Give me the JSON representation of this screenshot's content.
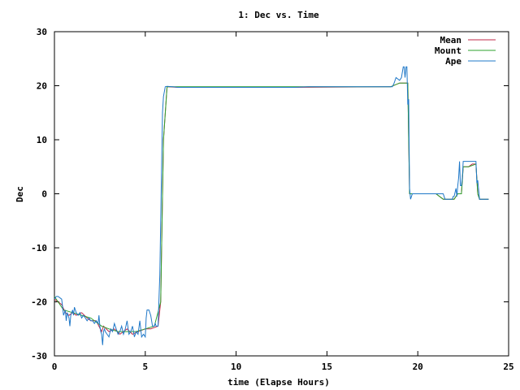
{
  "chart_data": {
    "type": "line",
    "title": "1: Dec vs. Time",
    "xlabel": "time (Elapse Hours)",
    "ylabel": "Dec",
    "xlim": [
      0,
      25
    ],
    "ylim": [
      -30,
      30
    ],
    "xticks": [
      0,
      5,
      10,
      15,
      20,
      25
    ],
    "yticks": [
      -30,
      -20,
      -10,
      0,
      10,
      20,
      30
    ],
    "grid": false,
    "legend_position": "top-right",
    "series": [
      {
        "name": "Mean",
        "color": "#c0284a",
        "x": [
          0.0,
          0.4,
          0.6,
          0.8,
          1.0,
          1.2,
          1.5,
          1.8,
          2.0,
          2.3,
          2.6,
          2.7,
          3.0,
          3.3,
          3.6,
          3.8,
          4.0,
          4.3,
          4.6,
          5.0,
          5.3,
          5.7,
          5.85,
          5.9,
          6.0,
          6.2,
          6.8,
          13.2,
          18.5,
          19.0,
          19.45,
          19.55,
          19.6,
          19.8,
          21.0,
          21.4,
          21.5,
          21.9,
          22.0,
          22.2,
          22.4,
          22.5,
          22.8,
          23.0,
          23.2,
          23.3,
          23.4,
          23.5,
          23.9
        ],
        "y": [
          -19.5,
          -20.5,
          -22.0,
          -22.5,
          -22.0,
          -22.5,
          -22.0,
          -23.0,
          -23.5,
          -23.5,
          -25.5,
          -24.5,
          -25.5,
          -25.0,
          -26.0,
          -25.5,
          -25.0,
          -26.0,
          -25.5,
          -25.0,
          -25.0,
          -24.5,
          -20.0,
          -10.0,
          10.0,
          19.8,
          19.7,
          19.7,
          19.8,
          20.5,
          20.5,
          0.0,
          0.0,
          0.0,
          0.0,
          -1.0,
          -1.0,
          -1.0,
          -1.0,
          0.0,
          0.0,
          5.0,
          5.0,
          5.5,
          5.5,
          0.0,
          -1.0,
          -1.0,
          -1.0
        ]
      },
      {
        "name": "Mount",
        "color": "#2ea02e",
        "x": [
          0.0,
          0.5,
          1.0,
          1.5,
          2.0,
          2.6,
          3.0,
          3.5,
          4.0,
          4.5,
          5.0,
          5.5,
          5.85,
          5.9,
          6.0,
          6.2,
          6.8,
          13.2,
          18.5,
          19.0,
          19.45,
          19.55,
          19.6,
          19.8,
          21.0,
          21.4,
          21.5,
          21.9,
          22.0,
          22.2,
          22.4,
          22.5,
          22.8,
          23.2,
          23.3,
          23.4,
          23.9
        ],
        "y": [
          -19.0,
          -21.5,
          -22.0,
          -22.5,
          -23.0,
          -24.5,
          -25.0,
          -25.5,
          -25.5,
          -25.5,
          -25.0,
          -24.5,
          -20.0,
          -10.0,
          10.0,
          19.8,
          19.8,
          19.8,
          19.8,
          20.5,
          20.5,
          0.0,
          0.0,
          0.0,
          0.0,
          -1.0,
          -1.0,
          -1.0,
          -1.0,
          0.0,
          0.0,
          5.0,
          5.0,
          5.5,
          0.0,
          -1.0,
          -1.0
        ]
      },
      {
        "name": "Ape",
        "color": "#1f78c8",
        "x": [
          0.0,
          0.1,
          0.2,
          0.4,
          0.45,
          0.5,
          0.6,
          0.65,
          0.7,
          0.8,
          0.85,
          0.9,
          1.0,
          1.05,
          1.1,
          1.2,
          1.3,
          1.4,
          1.5,
          1.6,
          1.7,
          1.8,
          1.9,
          2.0,
          2.1,
          2.2,
          2.3,
          2.4,
          2.45,
          2.5,
          2.55,
          2.6,
          2.65,
          2.7,
          2.75,
          2.8,
          2.9,
          3.0,
          3.1,
          3.2,
          3.3,
          3.4,
          3.5,
          3.6,
          3.7,
          3.8,
          3.9,
          4.0,
          4.1,
          4.2,
          4.3,
          4.4,
          4.5,
          4.6,
          4.7,
          4.8,
          4.9,
          5.0,
          5.05,
          5.1,
          5.2,
          5.3,
          5.4,
          5.5,
          5.55,
          5.6,
          5.7,
          5.8,
          5.85,
          5.9,
          5.95,
          6.0,
          6.1,
          6.2,
          6.5,
          6.8,
          7.0,
          13.2,
          14.0,
          18.0,
          18.6,
          18.7,
          18.8,
          19.0,
          19.1,
          19.2,
          19.25,
          19.3,
          19.35,
          19.4,
          19.45,
          19.5,
          19.55,
          19.6,
          19.7,
          19.8,
          20.0,
          21.0,
          21.2,
          21.4,
          21.45,
          21.5,
          21.6,
          21.7,
          21.9,
          21.95,
          22.0,
          22.1,
          22.15,
          22.2,
          22.25,
          22.3,
          22.35,
          22.4,
          22.45,
          22.5,
          22.6,
          22.7,
          22.8,
          23.0,
          23.2,
          23.25,
          23.3,
          23.4,
          23.5,
          23.9
        ],
        "y": [
          -19.5,
          -19.0,
          -19.0,
          -19.5,
          -21.0,
          -22.5,
          -21.5,
          -23.5,
          -22.0,
          -23.0,
          -24.5,
          -22.5,
          -21.5,
          -22.5,
          -21.0,
          -22.0,
          -22.5,
          -22.0,
          -23.0,
          -22.5,
          -23.0,
          -23.5,
          -23.0,
          -23.5,
          -23.5,
          -24.0,
          -23.5,
          -24.0,
          -22.5,
          -24.5,
          -25.5,
          -26.0,
          -28.0,
          -25.5,
          -25.0,
          -25.5,
          -26.0,
          -26.5,
          -25.0,
          -25.5,
          -24.0,
          -25.0,
          -26.0,
          -25.5,
          -24.5,
          -26.0,
          -25.0,
          -23.5,
          -26.0,
          -25.5,
          -24.5,
          -26.5,
          -25.5,
          -26.0,
          -23.5,
          -26.5,
          -26.0,
          -26.5,
          -23.0,
          -21.5,
          -21.5,
          -22.5,
          -24.5,
          -24.5,
          -24.0,
          -24.5,
          -24.5,
          -15.0,
          -5.0,
          5.0,
          15.0,
          18.0,
          19.8,
          19.9,
          19.8,
          19.7,
          19.7,
          19.7,
          19.8,
          19.8,
          19.8,
          20.5,
          21.5,
          21.0,
          21.5,
          23.5,
          23.5,
          21.5,
          23.5,
          23.5,
          16.5,
          17.5,
          1.0,
          -1.0,
          0.0,
          0.0,
          0.0,
          0.0,
          0.0,
          0.0,
          -0.5,
          -1.0,
          -1.0,
          -1.0,
          -1.0,
          -0.5,
          -0.5,
          1.0,
          -0.5,
          1.5,
          3.0,
          6.0,
          1.5,
          1.5,
          3.0,
          6.0,
          6.0,
          6.0,
          6.0,
          6.0,
          6.0,
          2.0,
          2.5,
          -1.0,
          -1.0,
          -1.0
        ]
      }
    ]
  }
}
